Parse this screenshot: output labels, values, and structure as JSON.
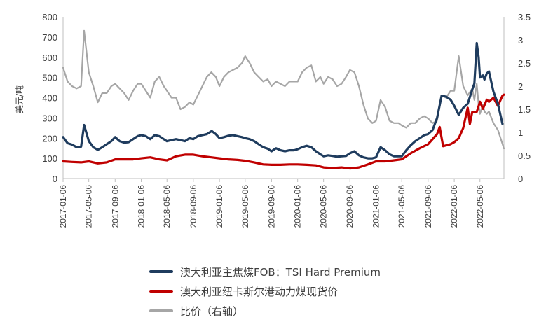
{
  "chart_data": {
    "type": "line",
    "ylabel": "美元/吨",
    "ylim_left": [
      0,
      800
    ],
    "yticks_left": [
      "0",
      "100",
      "200",
      "300",
      "400",
      "500",
      "600",
      "700",
      "800"
    ],
    "ylim_right": [
      0,
      3.5
    ],
    "yticks_right": [
      "0",
      "0.5",
      "1",
      "1.5",
      "2",
      "2.5",
      "3",
      "3.5"
    ],
    "x_start": "2017-01-06",
    "x_end": "2022-08-26",
    "x_tick_labels": [
      "2017-01-06",
      "2017-05-06",
      "2017-09-06",
      "2018-01-06",
      "2018-05-06",
      "2018-09-06",
      "2019-01-06",
      "2019-05-06",
      "2019-09-06",
      "2020-01-06",
      "2020-05-06",
      "2020-09-06",
      "2021-01-06",
      "2021-05-06",
      "2021-09-06",
      "2022-01-06",
      "2022-05-06"
    ],
    "grid": false,
    "legend_position": "bottom",
    "series": [
      {
        "name": "澳大利亚主焦煤FOB：TSI Hard Premium",
        "color": "#1f3c5e",
        "axis": "left",
        "points": [
          [
            "2017-01-06",
            205
          ],
          [
            "2017-01-27",
            175
          ],
          [
            "2017-02-17",
            168
          ],
          [
            "2017-03-10",
            155
          ],
          [
            "2017-03-31",
            158
          ],
          [
            "2017-04-14",
            265
          ],
          [
            "2017-05-06",
            185
          ],
          [
            "2017-05-27",
            155
          ],
          [
            "2017-06-17",
            142
          ],
          [
            "2017-07-08",
            155
          ],
          [
            "2017-07-29",
            170
          ],
          [
            "2017-08-19",
            185
          ],
          [
            "2017-09-06",
            205
          ],
          [
            "2017-09-27",
            185
          ],
          [
            "2017-10-18",
            178
          ],
          [
            "2017-11-08",
            180
          ],
          [
            "2017-11-29",
            195
          ],
          [
            "2017-12-20",
            210
          ],
          [
            "2018-01-06",
            215
          ],
          [
            "2018-01-27",
            210
          ],
          [
            "2018-02-17",
            195
          ],
          [
            "2018-03-10",
            215
          ],
          [
            "2018-03-31",
            210
          ],
          [
            "2018-04-21",
            195
          ],
          [
            "2018-05-06",
            185
          ],
          [
            "2018-05-27",
            190
          ],
          [
            "2018-06-17",
            195
          ],
          [
            "2018-07-08",
            190
          ],
          [
            "2018-07-29",
            185
          ],
          [
            "2018-08-19",
            200
          ],
          [
            "2018-09-06",
            195
          ],
          [
            "2018-09-27",
            210
          ],
          [
            "2018-10-18",
            215
          ],
          [
            "2018-11-08",
            220
          ],
          [
            "2018-12-01",
            235
          ],
          [
            "2018-12-20",
            220
          ],
          [
            "2019-01-06",
            200
          ],
          [
            "2019-01-27",
            205
          ],
          [
            "2019-02-17",
            212
          ],
          [
            "2019-03-10",
            215
          ],
          [
            "2019-03-31",
            210
          ],
          [
            "2019-04-21",
            205
          ],
          [
            "2019-05-06",
            200
          ],
          [
            "2019-05-27",
            195
          ],
          [
            "2019-06-17",
            185
          ],
          [
            "2019-07-08",
            170
          ],
          [
            "2019-07-29",
            155
          ],
          [
            "2019-08-19",
            148
          ],
          [
            "2019-09-06",
            135
          ],
          [
            "2019-09-27",
            150
          ],
          [
            "2019-10-18",
            140
          ],
          [
            "2019-11-08",
            135
          ],
          [
            "2019-11-29",
            140
          ],
          [
            "2019-12-20",
            140
          ],
          [
            "2020-01-06",
            145
          ],
          [
            "2020-01-27",
            155
          ],
          [
            "2020-02-17",
            162
          ],
          [
            "2020-03-10",
            155
          ],
          [
            "2020-03-31",
            135
          ],
          [
            "2020-04-21",
            120
          ],
          [
            "2020-05-06",
            110
          ],
          [
            "2020-05-27",
            115
          ],
          [
            "2020-06-17",
            112
          ],
          [
            "2020-07-08",
            108
          ],
          [
            "2020-07-29",
            110
          ],
          [
            "2020-08-19",
            112
          ],
          [
            "2020-09-06",
            125
          ],
          [
            "2020-09-27",
            135
          ],
          [
            "2020-10-18",
            115
          ],
          [
            "2020-11-08",
            105
          ],
          [
            "2020-11-29",
            100
          ],
          [
            "2020-12-20",
            100
          ],
          [
            "2021-01-06",
            105
          ],
          [
            "2021-01-27",
            155
          ],
          [
            "2021-02-17",
            140
          ],
          [
            "2021-03-10",
            120
          ],
          [
            "2021-03-31",
            110
          ],
          [
            "2021-04-21",
            110
          ],
          [
            "2021-05-06",
            110
          ],
          [
            "2021-05-27",
            140
          ],
          [
            "2021-06-17",
            165
          ],
          [
            "2021-07-08",
            185
          ],
          [
            "2021-07-29",
            200
          ],
          [
            "2021-08-19",
            215
          ],
          [
            "2021-09-06",
            220
          ],
          [
            "2021-09-27",
            240
          ],
          [
            "2021-10-18",
            300
          ],
          [
            "2021-11-08",
            410
          ],
          [
            "2021-11-29",
            405
          ],
          [
            "2021-12-20",
            390
          ],
          [
            "2022-01-06",
            360
          ],
          [
            "2022-01-27",
            315
          ],
          [
            "2022-02-17",
            350
          ],
          [
            "2022-03-10",
            370
          ],
          [
            "2022-03-31",
            440
          ],
          [
            "2022-04-10",
            470
          ],
          [
            "2022-04-21",
            670
          ],
          [
            "2022-04-30",
            600
          ],
          [
            "2022-05-06",
            500
          ],
          [
            "2022-05-20",
            510
          ],
          [
            "2022-05-27",
            490
          ],
          [
            "2022-06-07",
            520
          ],
          [
            "2022-06-17",
            530
          ],
          [
            "2022-07-08",
            430
          ],
          [
            "2022-07-29",
            370
          ],
          [
            "2022-08-19",
            270
          ]
        ]
      },
      {
        "name": "澳大利亚纽卡斯尔港动力煤现货价",
        "color": "#c00000",
        "axis": "left",
        "points": [
          [
            "2017-01-06",
            85
          ],
          [
            "2017-02-17",
            82
          ],
          [
            "2017-03-31",
            80
          ],
          [
            "2017-05-06",
            85
          ],
          [
            "2017-06-17",
            75
          ],
          [
            "2017-07-29",
            80
          ],
          [
            "2017-09-06",
            95
          ],
          [
            "2017-10-18",
            95
          ],
          [
            "2017-11-29",
            95
          ],
          [
            "2018-01-06",
            100
          ],
          [
            "2018-02-17",
            105
          ],
          [
            "2018-03-31",
            95
          ],
          [
            "2018-05-06",
            90
          ],
          [
            "2018-06-17",
            110
          ],
          [
            "2018-07-29",
            118
          ],
          [
            "2018-09-06",
            118
          ],
          [
            "2018-10-18",
            110
          ],
          [
            "2018-11-29",
            105
          ],
          [
            "2019-01-06",
            100
          ],
          [
            "2019-02-17",
            95
          ],
          [
            "2019-03-31",
            92
          ],
          [
            "2019-05-06",
            88
          ],
          [
            "2019-06-17",
            80
          ],
          [
            "2019-07-29",
            70
          ],
          [
            "2019-09-06",
            68
          ],
          [
            "2019-10-18",
            68
          ],
          [
            "2019-11-29",
            70
          ],
          [
            "2020-01-06",
            70
          ],
          [
            "2020-02-17",
            68
          ],
          [
            "2020-03-31",
            65
          ],
          [
            "2020-05-06",
            55
          ],
          [
            "2020-06-17",
            52
          ],
          [
            "2020-07-29",
            55
          ],
          [
            "2020-09-06",
            50
          ],
          [
            "2020-10-18",
            55
          ],
          [
            "2020-11-29",
            70
          ],
          [
            "2021-01-06",
            85
          ],
          [
            "2021-02-17",
            85
          ],
          [
            "2021-03-31",
            90
          ],
          [
            "2021-05-06",
            95
          ],
          [
            "2021-06-17",
            125
          ],
          [
            "2021-07-29",
            150
          ],
          [
            "2021-09-06",
            170
          ],
          [
            "2021-10-18",
            220
          ],
          [
            "2021-10-30",
            255
          ],
          [
            "2021-11-15",
            160
          ],
          [
            "2021-12-20",
            170
          ],
          [
            "2022-01-06",
            180
          ],
          [
            "2022-01-27",
            200
          ],
          [
            "2022-02-17",
            250
          ],
          [
            "2022-03-10",
            350
          ],
          [
            "2022-03-20",
            270
          ],
          [
            "2022-03-31",
            330
          ],
          [
            "2022-04-21",
            330
          ],
          [
            "2022-05-06",
            380
          ],
          [
            "2022-05-20",
            345
          ],
          [
            "2022-06-07",
            390
          ],
          [
            "2022-06-17",
            380
          ],
          [
            "2022-07-08",
            400
          ],
          [
            "2022-07-29",
            360
          ],
          [
            "2022-08-19",
            410
          ],
          [
            "2022-08-26",
            415
          ]
        ]
      },
      {
        "name": "比价（右轴）",
        "color": "#a6a6a6",
        "axis": "right",
        "points": [
          [
            "2017-01-06",
            2.4
          ],
          [
            "2017-01-27",
            2.1
          ],
          [
            "2017-02-17",
            2.0
          ],
          [
            "2017-03-10",
            1.95
          ],
          [
            "2017-03-31",
            2.0
          ],
          [
            "2017-04-14",
            3.2
          ],
          [
            "2017-05-06",
            2.3
          ],
          [
            "2017-05-27",
            2.0
          ],
          [
            "2017-06-17",
            1.65
          ],
          [
            "2017-07-08",
            1.85
          ],
          [
            "2017-07-29",
            1.85
          ],
          [
            "2017-08-19",
            2.0
          ],
          [
            "2017-09-06",
            2.05
          ],
          [
            "2017-09-27",
            1.95
          ],
          [
            "2017-10-18",
            1.85
          ],
          [
            "2017-11-08",
            1.7
          ],
          [
            "2017-11-29",
            1.9
          ],
          [
            "2017-12-20",
            2.05
          ],
          [
            "2018-01-06",
            2.05
          ],
          [
            "2018-01-27",
            1.9
          ],
          [
            "2018-02-17",
            1.75
          ],
          [
            "2018-03-10",
            2.1
          ],
          [
            "2018-03-31",
            2.2
          ],
          [
            "2018-04-21",
            2.0
          ],
          [
            "2018-05-06",
            1.9
          ],
          [
            "2018-05-27",
            1.75
          ],
          [
            "2018-06-17",
            1.75
          ],
          [
            "2018-07-08",
            1.5
          ],
          [
            "2018-07-29",
            1.55
          ],
          [
            "2018-08-19",
            1.65
          ],
          [
            "2018-09-06",
            1.6
          ],
          [
            "2018-09-27",
            1.8
          ],
          [
            "2018-10-18",
            2.0
          ],
          [
            "2018-11-08",
            2.2
          ],
          [
            "2018-11-29",
            2.3
          ],
          [
            "2018-12-20",
            2.2
          ],
          [
            "2019-01-06",
            2.0
          ],
          [
            "2019-01-27",
            2.2
          ],
          [
            "2019-02-17",
            2.3
          ],
          [
            "2019-03-10",
            2.35
          ],
          [
            "2019-03-31",
            2.4
          ],
          [
            "2019-04-21",
            2.5
          ],
          [
            "2019-05-06",
            2.65
          ],
          [
            "2019-05-27",
            2.5
          ],
          [
            "2019-06-17",
            2.3
          ],
          [
            "2019-07-08",
            2.2
          ],
          [
            "2019-07-29",
            2.1
          ],
          [
            "2019-08-19",
            2.15
          ],
          [
            "2019-09-06",
            2.0
          ],
          [
            "2019-09-27",
            2.1
          ],
          [
            "2019-10-18",
            2.05
          ],
          [
            "2019-11-08",
            2.0
          ],
          [
            "2019-11-29",
            2.1
          ],
          [
            "2019-12-20",
            2.1
          ],
          [
            "2020-01-06",
            2.1
          ],
          [
            "2020-01-27",
            2.3
          ],
          [
            "2020-02-17",
            2.4
          ],
          [
            "2020-03-10",
            2.45
          ],
          [
            "2020-03-31",
            2.1
          ],
          [
            "2020-04-21",
            2.2
          ],
          [
            "2020-05-06",
            2.05
          ],
          [
            "2020-05-27",
            2.2
          ],
          [
            "2020-06-17",
            2.15
          ],
          [
            "2020-07-08",
            2.0
          ],
          [
            "2020-07-29",
            2.05
          ],
          [
            "2020-08-19",
            2.2
          ],
          [
            "2020-09-06",
            2.35
          ],
          [
            "2020-09-27",
            2.3
          ],
          [
            "2020-10-18",
            2.0
          ],
          [
            "2020-11-08",
            1.6
          ],
          [
            "2020-11-29",
            1.3
          ],
          [
            "2020-12-20",
            1.2
          ],
          [
            "2021-01-06",
            1.25
          ],
          [
            "2021-01-27",
            1.7
          ],
          [
            "2021-02-17",
            1.55
          ],
          [
            "2021-03-10",
            1.25
          ],
          [
            "2021-03-31",
            1.2
          ],
          [
            "2021-04-21",
            1.2
          ],
          [
            "2021-05-06",
            1.15
          ],
          [
            "2021-05-27",
            1.1
          ],
          [
            "2021-06-17",
            1.2
          ],
          [
            "2021-07-08",
            1.2
          ],
          [
            "2021-07-29",
            1.3
          ],
          [
            "2021-08-19",
            1.35
          ],
          [
            "2021-09-06",
            1.3
          ],
          [
            "2021-09-27",
            1.2
          ],
          [
            "2021-10-18",
            1.25
          ],
          [
            "2021-11-08",
            1.8
          ],
          [
            "2021-11-29",
            1.75
          ],
          [
            "2021-12-20",
            1.9
          ],
          [
            "2022-01-06",
            1.9
          ],
          [
            "2022-01-27",
            2.65
          ],
          [
            "2022-02-17",
            2.0
          ],
          [
            "2022-03-10",
            1.8
          ],
          [
            "2022-03-31",
            1.95
          ],
          [
            "2022-04-10",
            1.7
          ],
          [
            "2022-04-21",
            2.05
          ],
          [
            "2022-04-30",
            1.6
          ],
          [
            "2022-05-06",
            1.4
          ],
          [
            "2022-05-20",
            1.6
          ],
          [
            "2022-05-27",
            1.45
          ],
          [
            "2022-06-07",
            1.4
          ],
          [
            "2022-06-17",
            1.45
          ],
          [
            "2022-07-08",
            1.2
          ],
          [
            "2022-07-29",
            1.05
          ],
          [
            "2022-08-19",
            0.75
          ],
          [
            "2022-08-26",
            0.65
          ]
        ]
      }
    ]
  }
}
